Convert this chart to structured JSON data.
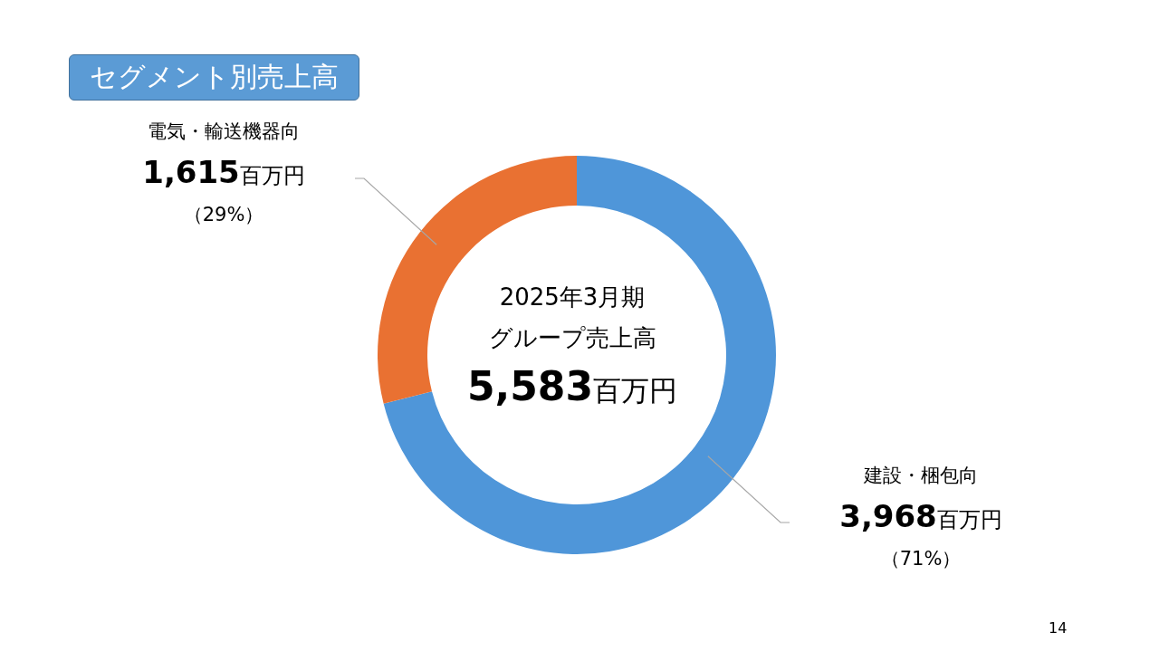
{
  "chart_data": {
    "type": "donut",
    "title": "セグメント別売上高",
    "categories": [
      "建設・梱包向",
      "電気・輸送機器向"
    ],
    "values": [
      3968,
      1615
    ],
    "colors": [
      "#4f96d9",
      "#e97132"
    ],
    "value_labels": [
      "3,968百万円（71%）",
      "1,615百万円（29%）"
    ],
    "annotations": [
      "2025年3月期",
      "グループ売上高",
      "5,583百万円",
      "14"
    ]
  }
}
